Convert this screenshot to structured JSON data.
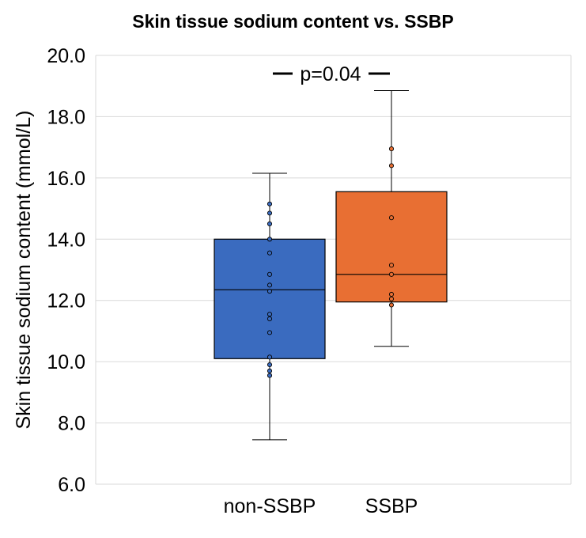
{
  "chart_data": {
    "type": "box",
    "title": "Skin tissue sodium content vs. SSBP",
    "ylabel": "Skin tissue sodium content (mmol/L)",
    "xlabel": "",
    "ylim": [
      6.0,
      20.0
    ],
    "yticks": [
      "6.0",
      "8.0",
      "10.0",
      "12.0",
      "14.0",
      "16.0",
      "18.0",
      "20.0"
    ],
    "grid": "horizontal",
    "categories": [
      "non-SSBP",
      "SSBP"
    ],
    "series": [
      {
        "category": "non-SSBP",
        "color": "#3a6bbf",
        "whisker_low": 7.45,
        "q1": 10.1,
        "median": 12.35,
        "q3": 14.0,
        "whisker_high": 16.15,
        "points": [
          15.15,
          14.85,
          14.5,
          14.0,
          13.55,
          12.85,
          12.5,
          12.3,
          11.55,
          11.4,
          10.95,
          10.15,
          9.9,
          9.7,
          9.55
        ]
      },
      {
        "category": "SSBP",
        "color": "#e86f33",
        "whisker_low": 10.5,
        "q1": 11.95,
        "median": 12.85,
        "q3": 15.55,
        "whisker_high": 18.85,
        "points": [
          16.95,
          16.4,
          14.7,
          13.15,
          12.85,
          12.2,
          12.05,
          11.85
        ]
      }
    ],
    "annotation": "p=0.04"
  }
}
